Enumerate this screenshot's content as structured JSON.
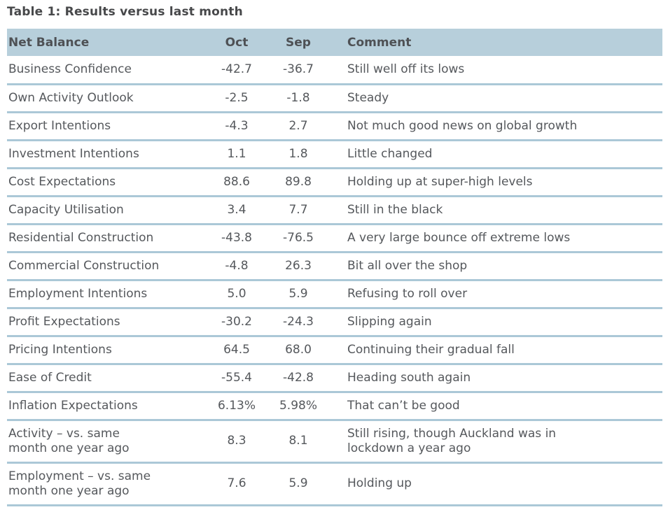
{
  "title": "Table 1: Results versus last month",
  "table": {
    "columns": [
      "Net Balance",
      "Oct",
      "Sep",
      "Comment"
    ],
    "rows": [
      {
        "label": "Business Confidence",
        "oct": "-42.7",
        "sep": "-36.7",
        "comment": "Still well off its lows"
      },
      {
        "label": "Own Activity Outlook",
        "oct": "-2.5",
        "sep": "-1.8",
        "comment": "Steady"
      },
      {
        "label": "Export Intentions",
        "oct": "-4.3",
        "sep": "2.7",
        "comment": "Not much good news on global growth"
      },
      {
        "label": "Investment Intentions",
        "oct": "1.1",
        "sep": "1.8",
        "comment": "Little changed"
      },
      {
        "label": "Cost Expectations",
        "oct": "88.6",
        "sep": "89.8",
        "comment": "Holding up at super-high levels"
      },
      {
        "label": "Capacity Utilisation",
        "oct": "3.4",
        "sep": "7.7",
        "comment": "Still in the black"
      },
      {
        "label": "Residential Construction",
        "oct": "-43.8",
        "sep": "-76.5",
        "comment": "A very large bounce off extreme lows"
      },
      {
        "label": "Commercial Construction",
        "oct": "-4.8",
        "sep": "26.3",
        "comment": "Bit all over the shop"
      },
      {
        "label": "Employment Intentions",
        "oct": "5.0",
        "sep": "5.9",
        "comment": "Refusing to roll over"
      },
      {
        "label": "Profit Expectations",
        "oct": "-30.2",
        "sep": "-24.3",
        "comment": "Slipping again"
      },
      {
        "label": "Pricing Intentions",
        "oct": "64.5",
        "sep": "68.0",
        "comment": "Continuing their gradual fall"
      },
      {
        "label": "Ease of Credit",
        "oct": "-55.4",
        "sep": "-42.8",
        "comment": "Heading south again"
      },
      {
        "label": "Inflation Expectations",
        "oct": "6.13%",
        "sep": "5.98%",
        "comment": "That can’t be good"
      },
      {
        "label": "Activity – vs. same\nmonth one year ago",
        "oct": "8.3",
        "sep": "8.1",
        "comment": "Still rising, though Auckland was in\nlockdown a year ago"
      },
      {
        "label": "Employment – vs. same\nmonth one year ago",
        "oct": "7.6",
        "sep": "5.9",
        "comment": "Holding up"
      }
    ]
  },
  "colors": {
    "header_bg": "#b7cfdb",
    "divider": "#abc8d7",
    "text": "#55585c",
    "title_text": "#47484a"
  }
}
